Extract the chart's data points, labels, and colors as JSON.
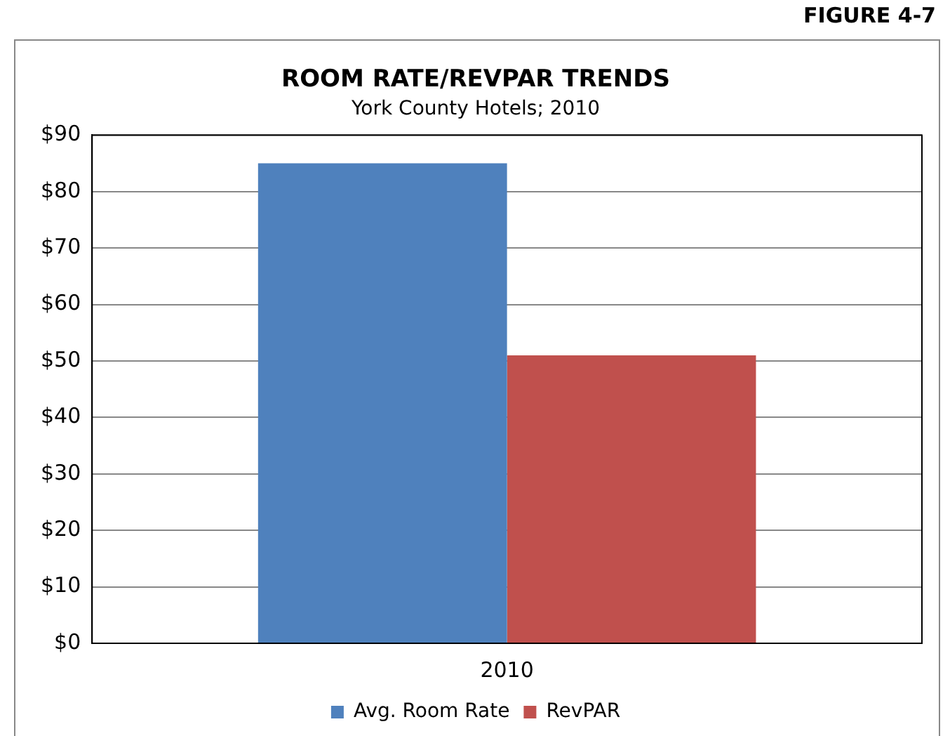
{
  "chart_data": {
    "type": "bar",
    "title": "ROOM RATE/REVPAR TRENDS",
    "subtitle": "York County Hotels; 2010",
    "annotations": [
      "FIGURE 4-7"
    ],
    "categories": [
      "2010"
    ],
    "series": [
      {
        "name": "Avg. Room Rate",
        "color": "#4f81bd",
        "values": [
          85
        ]
      },
      {
        "name": "RevPAR",
        "color": "#c0504d",
        "values": [
          51
        ]
      }
    ],
    "ylim": [
      0,
      90
    ],
    "yticks": [
      {
        "value": 0,
        "label": "$0"
      },
      {
        "value": 10,
        "label": "$10"
      },
      {
        "value": 20,
        "label": "$20"
      },
      {
        "value": 30,
        "label": "$30"
      },
      {
        "value": 40,
        "label": "$40"
      },
      {
        "value": 50,
        "label": "$50"
      },
      {
        "value": 60,
        "label": "$60"
      },
      {
        "value": 70,
        "label": "$70"
      },
      {
        "value": 80,
        "label": "$80"
      },
      {
        "value": 90,
        "label": "$90"
      }
    ],
    "grid": "y",
    "legend": "bottom"
  }
}
